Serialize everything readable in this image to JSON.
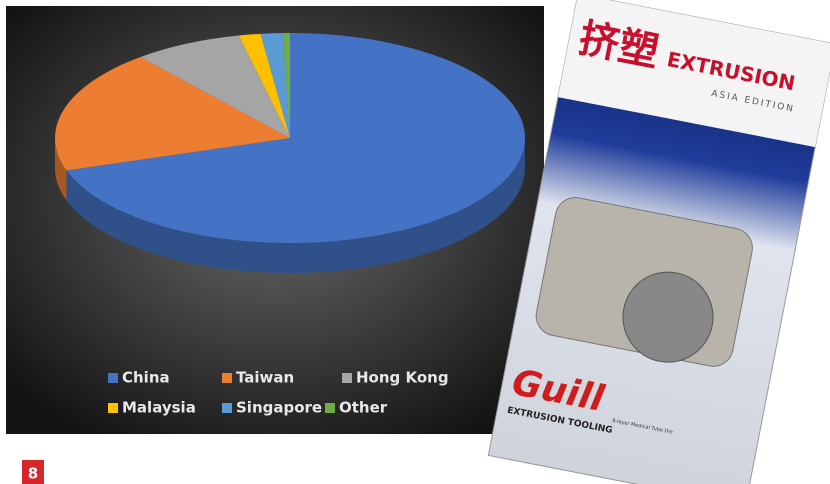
{
  "chart_data": {
    "type": "pie3d",
    "categories": [
      "China",
      "Taiwan",
      "Hong Kong",
      "Malaysia",
      "Singapore",
      "Other"
    ],
    "values": [
      70,
      19,
      7.5,
      1.5,
      1.5,
      0.5
    ],
    "colors": [
      "#4472c4",
      "#ed7d31",
      "#a5a5a5",
      "#ffc000",
      "#5b9bd5",
      "#70ad47"
    ],
    "legend": "bottom"
  },
  "cover": {
    "title_cn": "挤塑",
    "title": "EXTRUSION",
    "edition": "ASIA EDITION",
    "brand": "Guill",
    "brand_sub": "EXTRUSION TOOLING",
    "caption": "8-layer Medical Tube Die"
  },
  "page_number": 8
}
